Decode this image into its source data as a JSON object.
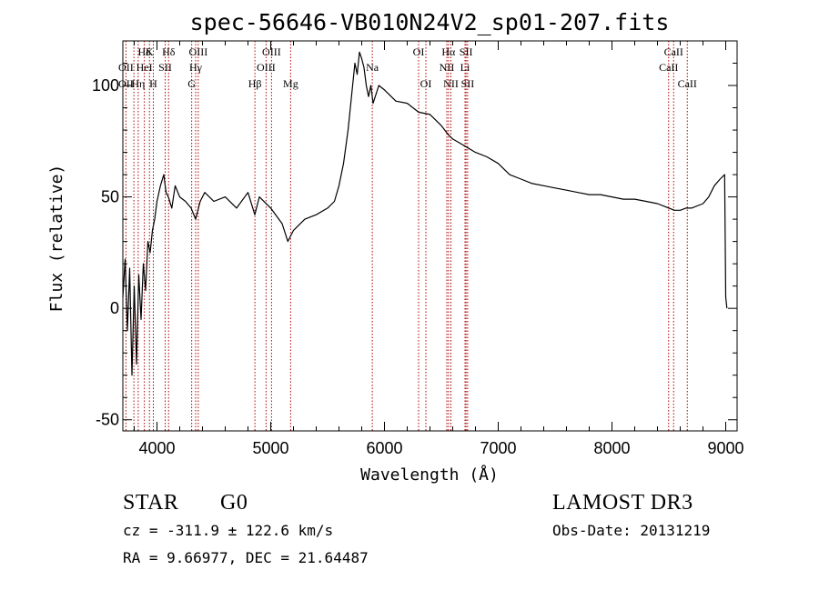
{
  "chart_data": {
    "type": "line",
    "title": "spec-56646-VB010N24V2_sp01-207.fits",
    "xlabel": "Wavelength (Å)",
    "ylabel": "Flux (relative)",
    "xlim": [
      3700,
      9100
    ],
    "ylim": [
      -55,
      120
    ],
    "x_ticks": [
      4000,
      5000,
      6000,
      7000,
      8000,
      9000
    ],
    "y_ticks": [
      -50,
      0,
      50,
      100
    ],
    "series": [
      {
        "name": "spectrum",
        "x": [
          3700,
          3720,
          3740,
          3760,
          3780,
          3800,
          3820,
          3840,
          3860,
          3880,
          3900,
          3920,
          3940,
          3960,
          3980,
          4000,
          4030,
          4060,
          4080,
          4100,
          4130,
          4160,
          4200,
          4250,
          4300,
          4340,
          4380,
          4420,
          4500,
          4600,
          4700,
          4800,
          4860,
          4900,
          5000,
          5100,
          5150,
          5200,
          5300,
          5400,
          5500,
          5560,
          5600,
          5640,
          5680,
          5700,
          5720,
          5740,
          5760,
          5780,
          5800,
          5820,
          5840,
          5860,
          5880,
          5900,
          5950,
          6000,
          6100,
          6200,
          6300,
          6400,
          6500,
          6560,
          6600,
          6700,
          6800,
          6900,
          7000,
          7100,
          7200,
          7300,
          7400,
          7500,
          7600,
          7700,
          7800,
          7900,
          8000,
          8100,
          8200,
          8300,
          8400,
          8450,
          8500,
          8550,
          8600,
          8650,
          8700,
          8800,
          8850,
          8900,
          8950,
          8990,
          9000,
          9010
        ],
        "values": [
          5,
          22,
          -10,
          18,
          -30,
          10,
          -25,
          15,
          -5,
          20,
          8,
          30,
          25,
          35,
          40,
          48,
          55,
          60,
          52,
          50,
          45,
          55,
          50,
          48,
          45,
          40,
          48,
          52,
          48,
          50,
          45,
          52,
          42,
          50,
          45,
          38,
          30,
          35,
          40,
          42,
          45,
          48,
          55,
          65,
          80,
          90,
          100,
          110,
          105,
          115,
          112,
          108,
          100,
          95,
          100,
          92,
          100,
          98,
          93,
          92,
          88,
          87,
          82,
          78,
          76,
          73,
          70,
          68,
          65,
          60,
          58,
          56,
          55,
          54,
          53,
          52,
          51,
          51,
          50,
          49,
          49,
          48,
          47,
          46,
          45,
          44,
          44,
          45,
          45,
          47,
          50,
          55,
          58,
          60,
          5,
          0
        ]
      }
    ],
    "lines_row1": [
      {
        "label": "Hδ",
        "x": 3889
      },
      {
        "label": "K",
        "x": 3934
      },
      {
        "label": "Hδ",
        "x": 4102
      },
      {
        "label": "OIII",
        "x": 4363
      },
      {
        "label": "OIII",
        "x": 5007
      },
      {
        "label": "OI",
        "x": 6300
      },
      {
        "label": "Hα",
        "x": 6563
      },
      {
        "label": "SII",
        "x": 6717
      },
      {
        "label": "CaII",
        "x": 8542
      }
    ],
    "lines_row2": [
      {
        "label": "OII",
        "x": 3727
      },
      {
        "label": "HeI",
        "x": 3889
      },
      {
        "label": "SII",
        "x": 4072
      },
      {
        "label": "Hγ",
        "x": 4340
      },
      {
        "label": "OIII",
        "x": 4959
      },
      {
        "label": "Na",
        "x": 5893
      },
      {
        "label": "NII",
        "x": 6548
      },
      {
        "label": "Li",
        "x": 6708
      },
      {
        "label": "CaII",
        "x": 8498
      }
    ],
    "lines_row3": [
      {
        "label": "OII",
        "x": 3727
      },
      {
        "label": "Hη",
        "x": 3835
      },
      {
        "label": "H",
        "x": 3968
      },
      {
        "label": "G",
        "x": 4305
      },
      {
        "label": "Hβ",
        "x": 4861
      },
      {
        "label": "Mg",
        "x": 5175
      },
      {
        "label": "OI",
        "x": 6364
      },
      {
        "label": "NII",
        "x": 6584
      },
      {
        "label": "SII",
        "x": 6731
      },
      {
        "label": "CaII",
        "x": 8662
      }
    ],
    "marker_lines": [
      3727,
      3797,
      3835,
      3889,
      3934,
      3968,
      4072,
      4102,
      4305,
      4340,
      4363,
      4861,
      4959,
      5007,
      5175,
      5893,
      6300,
      6364,
      6548,
      6563,
      6584,
      6708,
      6717,
      6731,
      8498,
      8542,
      8662
    ]
  },
  "info": {
    "type_label": "STAR",
    "subclass": "G0",
    "survey": "LAMOST DR3",
    "redshift": "cz = -311.9 ± 122.6 km/s",
    "obs_date": "Obs-Date: 20131219",
    "coords": "RA =   9.66977, DEC =  21.64487"
  },
  "colors": {
    "line": "#000000",
    "marker": "#b00000"
  }
}
